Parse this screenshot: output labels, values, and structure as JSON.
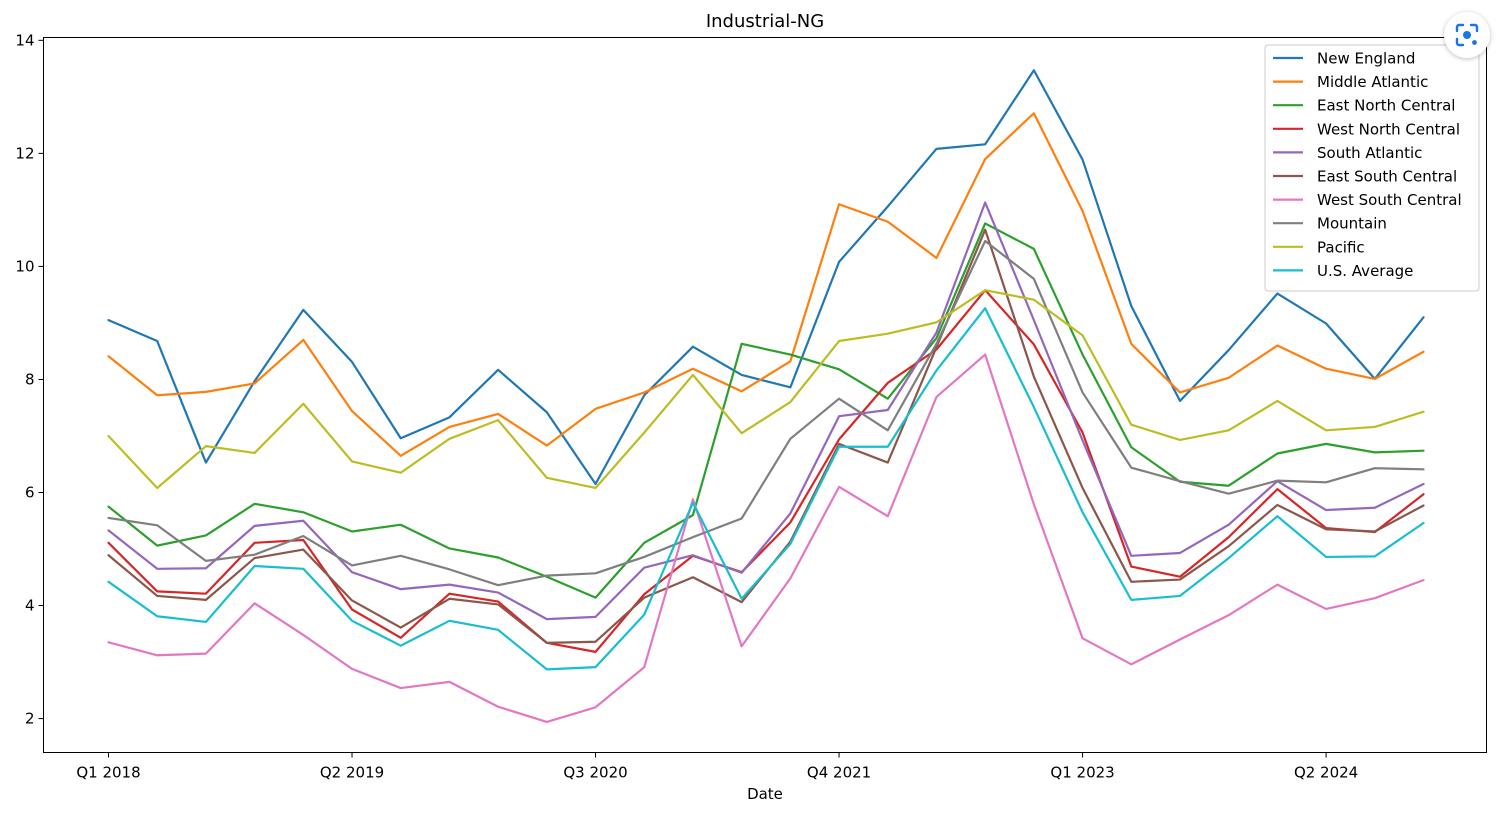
{
  "chart_data": {
    "type": "line",
    "title": "Industrial-NG",
    "xlabel": "Date",
    "ylabel": "",
    "x": [
      "Q1 2018",
      "Q2 2018",
      "Q3 2018",
      "Q4 2018",
      "Q1 2019",
      "Q2 2019",
      "Q3 2019",
      "Q4 2019",
      "Q1 2020",
      "Q2 2020",
      "Q3 2020",
      "Q4 2020",
      "Q1 2021",
      "Q2 2021",
      "Q3 2021",
      "Q4 2021",
      "Q1 2022",
      "Q2 2022",
      "Q3 2022",
      "Q4 2022",
      "Q1 2023",
      "Q2 2023",
      "Q3 2023",
      "Q4 2023",
      "Q1 2024",
      "Q2 2024",
      "Q3 2024",
      "Q4 2024"
    ],
    "xticks": [
      "Q1 2018",
      "Q2 2019",
      "Q3 2020",
      "Q4 2021",
      "Q1 2023",
      "Q2 2024"
    ],
    "ylim": [
      1.4,
      14.05
    ],
    "yticks": [
      2,
      4,
      6,
      8,
      10,
      12,
      14
    ],
    "grid": false,
    "legend_position": "top-right",
    "series": [
      {
        "name": "New England",
        "color": "#1f77b4",
        "values": [
          9.05,
          8.68,
          6.53,
          7.97,
          9.23,
          8.31,
          6.96,
          7.33,
          8.17,
          7.42,
          6.15,
          7.72,
          8.58,
          8.08,
          7.86,
          10.08,
          11.06,
          12.08,
          12.16,
          13.47,
          11.89,
          9.3,
          7.62,
          8.52,
          9.52,
          8.99,
          8.01,
          9.1
        ]
      },
      {
        "name": "Middle Atlantic",
        "color": "#ff7f0e",
        "values": [
          8.41,
          7.72,
          7.78,
          7.93,
          8.7,
          7.44,
          6.65,
          7.16,
          7.39,
          6.83,
          7.48,
          7.77,
          8.19,
          7.79,
          8.32,
          11.1,
          10.79,
          10.15,
          11.9,
          12.71,
          10.98,
          8.63,
          7.77,
          8.03,
          8.6,
          8.19,
          8.01,
          8.49
        ]
      },
      {
        "name": "East North Central",
        "color": "#2ca02c",
        "values": [
          5.75,
          5.06,
          5.24,
          5.8,
          5.65,
          5.31,
          5.43,
          5.01,
          4.85,
          4.51,
          4.14,
          5.11,
          5.6,
          8.63,
          8.44,
          8.18,
          7.66,
          8.73,
          10.76,
          10.31,
          8.44,
          6.8,
          6.19,
          6.12,
          6.69,
          6.86,
          6.71,
          6.74
        ]
      },
      {
        "name": "West North Central",
        "color": "#d62728",
        "values": [
          5.11,
          4.25,
          4.21,
          5.11,
          5.16,
          3.93,
          3.43,
          4.21,
          4.07,
          3.34,
          3.18,
          4.2,
          4.88,
          4.59,
          5.47,
          6.94,
          7.94,
          8.53,
          9.58,
          8.62,
          7.06,
          4.69,
          4.51,
          5.21,
          6.06,
          5.37,
          5.3,
          5.97
        ]
      },
      {
        "name": "South Atlantic",
        "color": "#9467bd",
        "values": [
          5.33,
          4.65,
          4.66,
          5.41,
          5.5,
          4.59,
          4.29,
          4.37,
          4.23,
          3.76,
          3.8,
          4.67,
          4.89,
          4.58,
          5.63,
          7.35,
          7.46,
          8.83,
          11.13,
          9.05,
          6.92,
          4.88,
          4.93,
          5.43,
          6.2,
          5.69,
          5.73,
          6.15
        ]
      },
      {
        "name": "East South Central",
        "color": "#8c564b",
        "values": [
          4.89,
          4.17,
          4.1,
          4.84,
          4.99,
          4.09,
          3.61,
          4.12,
          4.02,
          3.34,
          3.36,
          4.14,
          4.5,
          4.06,
          5.13,
          6.86,
          6.53,
          8.57,
          10.65,
          8.05,
          6.08,
          4.42,
          4.46,
          5.05,
          5.78,
          5.35,
          5.31,
          5.77
        ]
      },
      {
        "name": "West South Central",
        "color": "#e377c2",
        "values": [
          3.35,
          3.12,
          3.15,
          4.04,
          3.48,
          2.88,
          2.54,
          2.65,
          2.21,
          1.94,
          2.2,
          2.91,
          5.88,
          3.28,
          4.48,
          6.1,
          5.58,
          7.69,
          8.44,
          5.79,
          3.42,
          2.96,
          3.4,
          3.83,
          4.37,
          3.94,
          4.13,
          4.45
        ]
      },
      {
        "name": "Mountain",
        "color": "#7f7f7f",
        "values": [
          5.55,
          5.42,
          4.79,
          4.9,
          5.23,
          4.71,
          4.88,
          4.64,
          4.36,
          4.53,
          4.57,
          4.86,
          5.21,
          5.54,
          6.95,
          7.66,
          7.1,
          8.63,
          10.45,
          9.78,
          7.77,
          6.44,
          6.2,
          5.98,
          6.21,
          6.18,
          6.43,
          6.41
        ]
      },
      {
        "name": "Pacific",
        "color": "#bcbd22",
        "values": [
          7.0,
          6.08,
          6.82,
          6.7,
          7.57,
          6.55,
          6.35,
          6.95,
          7.28,
          6.26,
          6.08,
          7.06,
          8.08,
          7.05,
          7.6,
          8.68,
          8.81,
          9.01,
          9.58,
          9.41,
          8.78,
          7.2,
          6.93,
          7.1,
          7.62,
          7.1,
          7.16,
          7.43
        ]
      },
      {
        "name": "U.S. Average",
        "color": "#17becf",
        "values": [
          4.42,
          3.81,
          3.71,
          4.7,
          4.65,
          3.73,
          3.29,
          3.73,
          3.57,
          2.87,
          2.91,
          3.84,
          5.82,
          4.12,
          5.09,
          6.81,
          6.81,
          8.16,
          9.26,
          7.51,
          5.65,
          4.1,
          4.17,
          4.84,
          5.58,
          4.86,
          4.87,
          5.46
        ]
      }
    ]
  },
  "toolbar": {
    "lens_icon": "lens-scan-icon"
  }
}
